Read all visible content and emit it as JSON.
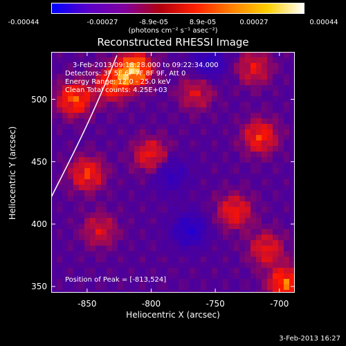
{
  "colorbar": {
    "ticks": [
      "-0.00044",
      "-0.00027",
      "-8.9e-05",
      "8.9e-05",
      "0.00027",
      "0.00044"
    ],
    "units": "(photons cm⁻² s⁻¹ asec⁻²)",
    "stops": [
      "#0000ff",
      "#5a00c8",
      "#8000a0",
      "#b00010",
      "#ff2000",
      "#ff8000",
      "#ffd000",
      "#ffffff"
    ]
  },
  "info": {
    "line1": "3-Feb-2013 09:18:28.000 to 09:22:34.000",
    "line2": "Detectors: 3F 5F 6F 7F 8F 9F, Att 0",
    "line3": "Energy Range: 12.0 - 25.0 keV",
    "line4": "Clean     Total counts: 4.25E+03",
    "peak": "Position of Peak = [-813,524]"
  },
  "footer": {
    "timestamp": "3-Feb-2013 16:27"
  },
  "chart_data": {
    "type": "heatmap",
    "title": "Reconstructed RHESSI Image",
    "xlabel": "Heliocentric X (arcsec)",
    "ylabel": "Heliocentric Y (arcsec)",
    "xlim": [
      -878,
      -688
    ],
    "ylim": [
      345,
      538
    ],
    "xticks": [
      -850,
      -800,
      -750,
      -700
    ],
    "yticks": [
      350,
      400,
      450,
      500
    ],
    "color_range": [
      -0.00044,
      0.00044
    ],
    "peak_position": [
      -813,
      524
    ],
    "bright_regions": [
      {
        "x": -813,
        "y": 524,
        "level": 1.0
      },
      {
        "x": -860,
        "y": 500,
        "level": 0.75
      },
      {
        "x": -830,
        "y": 512,
        "level": 0.7
      },
      {
        "x": -850,
        "y": 440,
        "level": 0.65
      },
      {
        "x": -800,
        "y": 455,
        "level": 0.6
      },
      {
        "x": -715,
        "y": 470,
        "level": 0.65
      },
      {
        "x": -735,
        "y": 410,
        "level": 0.6
      },
      {
        "x": -710,
        "y": 380,
        "level": 0.55
      },
      {
        "x": -695,
        "y": 352,
        "level": 0.8
      },
      {
        "x": -840,
        "y": 395,
        "level": 0.45
      },
      {
        "x": -765,
        "y": 505,
        "level": 0.45
      },
      {
        "x": -720,
        "y": 525,
        "level": 0.5
      }
    ],
    "dark_regions": [
      {
        "x": -770,
        "y": 395,
        "level": -0.6
      },
      {
        "x": -755,
        "y": 530,
        "level": -0.5
      },
      {
        "x": -785,
        "y": 440,
        "level": -0.45
      }
    ]
  }
}
